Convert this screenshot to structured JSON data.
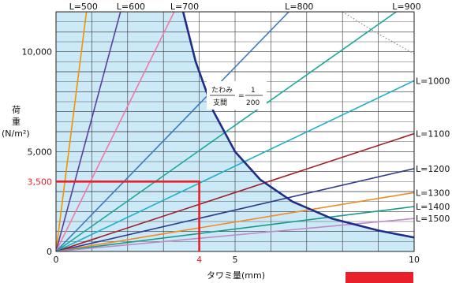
{
  "chart_data": {
    "type": "line",
    "xlabel": "タワミ量(mm)",
    "ylabel_lines": [
      "荷",
      "重",
      "(N/m²)"
    ],
    "xlim": [
      0,
      10
    ],
    "ylim": [
      0,
      12000
    ],
    "x_ticks": [
      {
        "value": 0,
        "label": "0"
      },
      {
        "value": 5,
        "label": "5"
      },
      {
        "value": 10,
        "label": "10"
      }
    ],
    "y_ticks": [
      {
        "value": 0,
        "label": "0"
      },
      {
        "value": 5000,
        "label": "5,000"
      },
      {
        "value": 10000,
        "label": "10,000"
      }
    ],
    "grid": true,
    "allowable_region": {
      "label_top": "たわみ",
      "label_bottom": "支間",
      "label_eq": "=",
      "fraction_num": "1",
      "fraction_den": "200"
    },
    "highlight": {
      "x": 4,
      "y": 3500,
      "x_label": "4",
      "y_label": "3,500"
    },
    "series": [
      {
        "name": "L=500",
        "color": "#f29400",
        "end": [
          0.85,
          12000
        ],
        "label_pos": "top"
      },
      {
        "name": "L=600",
        "color": "#5b3fa0",
        "end": [
          1.8,
          12000
        ],
        "label_pos": "top"
      },
      {
        "name": "L=700",
        "color": "#ef7aa6",
        "end": [
          3.3,
          12000
        ],
        "label_pos": "top"
      },
      {
        "name": "L=800",
        "color": "#3a7cc0",
        "end": [
          6.5,
          12000
        ],
        "label_pos": "top"
      },
      {
        "name": "L=900",
        "color": "#1aa89a",
        "end": [
          9.5,
          12000
        ],
        "label_pos": "top"
      },
      {
        "name": "L=1000",
        "color": "#1fb0c8",
        "end": [
          10,
          8550
        ],
        "label_pos": "right"
      },
      {
        "name": "L=1100",
        "color": "#a01e2a",
        "end": [
          10,
          5900
        ],
        "label_pos": "right"
      },
      {
        "name": "L=1200",
        "color": "#2e3a8c",
        "end": [
          10,
          4150
        ],
        "label_pos": "right"
      },
      {
        "name": "L=1300",
        "color": "#f08a24",
        "end": [
          10,
          2950
        ],
        "label_pos": "right"
      },
      {
        "name": "L=1400",
        "color": "#1a9a8a",
        "end": [
          10,
          2250
        ],
        "label_pos": "right"
      },
      {
        "name": "L=1500",
        "color": "#c08ac8",
        "end": [
          10,
          1650
        ],
        "label_pos": "right"
      }
    ],
    "limit_curve": {
      "color": "#1e2d8a",
      "points": [
        [
          3.55,
          12000
        ],
        [
          3.9,
          9500
        ],
        [
          4.4,
          7000
        ],
        [
          5.0,
          5000
        ],
        [
          5.7,
          3600
        ],
        [
          6.6,
          2500
        ],
        [
          7.7,
          1650
        ],
        [
          9.0,
          1050
        ],
        [
          10,
          700
        ]
      ]
    },
    "dotted_curve": {
      "points": [
        [
          8.0,
          12000
        ],
        [
          8.9,
          11000
        ],
        [
          10,
          9900
        ]
      ]
    }
  }
}
